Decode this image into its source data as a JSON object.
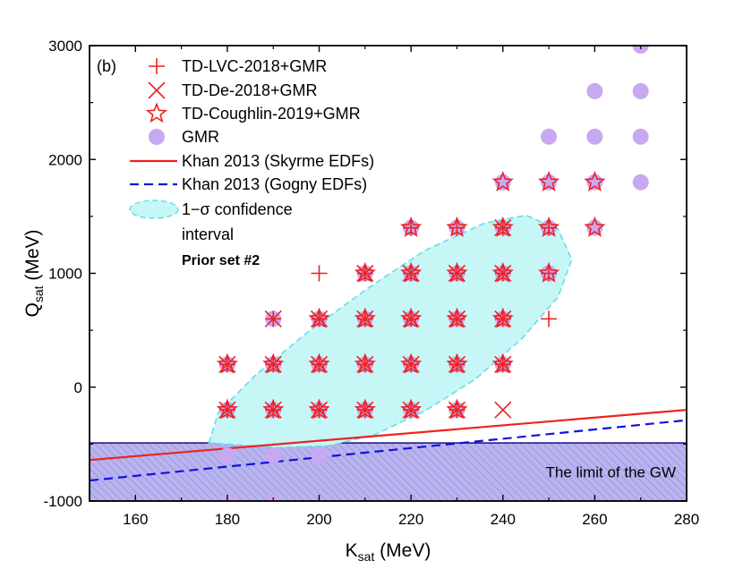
{
  "chart_data": {
    "type": "scatter",
    "panel_label": "(b)",
    "xlabel": {
      "main": "K",
      "sub": "sat",
      "unit": " (MeV)"
    },
    "ylabel": {
      "main": "Q",
      "sub": "sat",
      "unit": " (MeV)"
    },
    "xlim": [
      150,
      280
    ],
    "ylim": [
      -1000,
      3000
    ],
    "xticks": [
      160,
      180,
      200,
      220,
      240,
      260,
      280
    ],
    "yticks": [
      -1000,
      0,
      1000,
      2000,
      3000
    ],
    "grid": false,
    "legend_position": "top-left",
    "legend_note": "Prior set #2",
    "colors": {
      "red": "#ee2222",
      "blue": "#1111dd",
      "gmr": "#c8a8f0",
      "ellipse_fill": "#c6f6f6",
      "ellipse_edge": "#66dde6",
      "band_fill": "#b9b4ee",
      "band_hatch": "#8c86dd",
      "band_edge": "#1a0a8c"
    },
    "series": [
      {
        "name": "TD-LVC-2018+GMR",
        "marker": "plus",
        "points": [
          [
            180,
            -200
          ],
          [
            180,
            200
          ],
          [
            190,
            -200
          ],
          [
            190,
            200
          ],
          [
            190,
            600
          ],
          [
            200,
            -200
          ],
          [
            200,
            200
          ],
          [
            200,
            600
          ],
          [
            200,
            1000
          ],
          [
            210,
            -200
          ],
          [
            210,
            200
          ],
          [
            210,
            600
          ],
          [
            210,
            1000
          ],
          [
            220,
            -200
          ],
          [
            220,
            200
          ],
          [
            220,
            600
          ],
          [
            220,
            1000
          ],
          [
            220,
            1400
          ],
          [
            230,
            -200
          ],
          [
            230,
            200
          ],
          [
            230,
            600
          ],
          [
            230,
            1000
          ],
          [
            230,
            1400
          ],
          [
            240,
            200
          ],
          [
            240,
            600
          ],
          [
            240,
            1000
          ],
          [
            240,
            1400
          ],
          [
            250,
            600
          ],
          [
            250,
            1000
          ],
          [
            250,
            1400
          ]
        ]
      },
      {
        "name": "TD-De-2018+GMR",
        "marker": "cross",
        "points": [
          [
            180,
            -200
          ],
          [
            180,
            200
          ],
          [
            190,
            -200
          ],
          [
            190,
            200
          ],
          [
            190,
            600
          ],
          [
            200,
            -200
          ],
          [
            200,
            200
          ],
          [
            200,
            600
          ],
          [
            210,
            -200
          ],
          [
            210,
            200
          ],
          [
            210,
            600
          ],
          [
            210,
            1000
          ],
          [
            220,
            -200
          ],
          [
            220,
            200
          ],
          [
            220,
            600
          ],
          [
            220,
            1000
          ],
          [
            230,
            -200
          ],
          [
            230,
            200
          ],
          [
            230,
            600
          ],
          [
            230,
            1000
          ],
          [
            240,
            -200
          ],
          [
            240,
            200
          ],
          [
            240,
            600
          ],
          [
            240,
            1000
          ],
          [
            240,
            1400
          ]
        ]
      },
      {
        "name": "TD-Coughlin-2019+GMR",
        "marker": "star",
        "points": [
          [
            180,
            -200
          ],
          [
            180,
            200
          ],
          [
            190,
            -200
          ],
          [
            190,
            200
          ],
          [
            200,
            -200
          ],
          [
            200,
            200
          ],
          [
            200,
            600
          ],
          [
            210,
            -200
          ],
          [
            210,
            200
          ],
          [
            210,
            600
          ],
          [
            210,
            1000
          ],
          [
            220,
            -200
          ],
          [
            220,
            200
          ],
          [
            220,
            600
          ],
          [
            220,
            1000
          ],
          [
            220,
            1400
          ],
          [
            230,
            -200
          ],
          [
            230,
            200
          ],
          [
            230,
            600
          ],
          [
            230,
            1000
          ],
          [
            230,
            1400
          ],
          [
            240,
            200
          ],
          [
            240,
            600
          ],
          [
            240,
            1000
          ],
          [
            240,
            1400
          ],
          [
            240,
            1800
          ],
          [
            250,
            1000
          ],
          [
            250,
            1400
          ],
          [
            250,
            1800
          ],
          [
            260,
            1400
          ],
          [
            260,
            1800
          ]
        ]
      },
      {
        "name": "GMR",
        "marker": "circle",
        "points": [
          [
            180,
            -1000
          ],
          [
            180,
            -600
          ],
          [
            180,
            -200
          ],
          [
            180,
            200
          ],
          [
            190,
            -1000
          ],
          [
            190,
            -600
          ],
          [
            190,
            -200
          ],
          [
            190,
            200
          ],
          [
            190,
            600
          ],
          [
            200,
            -600
          ],
          [
            200,
            -200
          ],
          [
            200,
            200
          ],
          [
            200,
            600
          ],
          [
            210,
            -200
          ],
          [
            210,
            200
          ],
          [
            210,
            600
          ],
          [
            210,
            1000
          ],
          [
            220,
            -200
          ],
          [
            220,
            200
          ],
          [
            220,
            600
          ],
          [
            220,
            1000
          ],
          [
            220,
            1400
          ],
          [
            230,
            -200
          ],
          [
            230,
            200
          ],
          [
            230,
            600
          ],
          [
            230,
            1000
          ],
          [
            230,
            1400
          ],
          [
            240,
            200
          ],
          [
            240,
            600
          ],
          [
            240,
            1000
          ],
          [
            240,
            1400
          ],
          [
            240,
            1800
          ],
          [
            250,
            1000
          ],
          [
            250,
            1400
          ],
          [
            250,
            1800
          ],
          [
            250,
            2200
          ],
          [
            260,
            1400
          ],
          [
            260,
            1800
          ],
          [
            260,
            2200
          ],
          [
            260,
            2600
          ],
          [
            270,
            1800
          ],
          [
            270,
            2200
          ],
          [
            270,
            2600
          ],
          [
            270,
            3000
          ]
        ]
      }
    ],
    "lines": [
      {
        "name": "Khan 2013 (Skyrme EDFs)",
        "style": "solid",
        "points": [
          [
            150,
            -640
          ],
          [
            280,
            -200
          ]
        ]
      },
      {
        "name": "Khan 2013 (Gogny EDFs)",
        "style": "dashed",
        "points": [
          [
            150,
            -820
          ],
          [
            280,
            -290
          ]
        ]
      }
    ],
    "ellipse": {
      "name": "1−σ confidence",
      "name_line2": "interval",
      "polygon": [
        [
          176,
          -490
        ],
        [
          178,
          -225
        ],
        [
          186,
          100
        ],
        [
          198,
          500
        ],
        [
          211,
          880
        ],
        [
          223,
          1200
        ],
        [
          236,
          1440
        ],
        [
          245,
          1510
        ],
        [
          252,
          1390
        ],
        [
          255,
          1120
        ],
        [
          252,
          790
        ],
        [
          244,
          420
        ],
        [
          234,
          70
        ],
        [
          223,
          -210
        ],
        [
          212,
          -420
        ],
        [
          202,
          -515
        ],
        [
          191,
          -530
        ]
      ]
    },
    "gw_limit": {
      "label": "The limit of the GW",
      "y_from": -1000,
      "y_to": -490
    }
  }
}
